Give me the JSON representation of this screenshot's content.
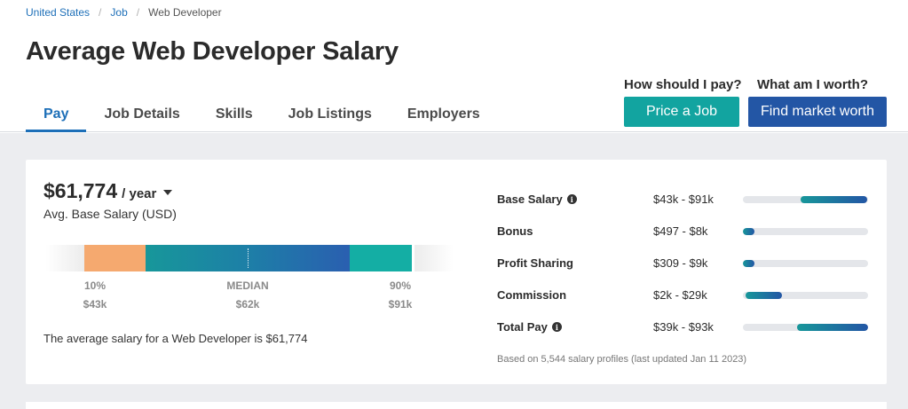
{
  "breadcrumb": {
    "items": [
      "United States",
      "Job",
      "Web Developer"
    ]
  },
  "page_title": "Average Web Developer Salary",
  "tabs": [
    {
      "label": "Pay",
      "active": true
    },
    {
      "label": "Job Details",
      "active": false
    },
    {
      "label": "Skills",
      "active": false
    },
    {
      "label": "Job Listings",
      "active": false
    },
    {
      "label": "Employers",
      "active": false
    }
  ],
  "cta": {
    "pay_question": "How should I pay?",
    "pay_button": "Price a Job",
    "worth_question": "What am I worth?",
    "worth_button": "Find market worth"
  },
  "summary": {
    "amount": "$61,774",
    "period": "/ year",
    "subtitle": "Avg. Base Salary (USD)",
    "percentiles": {
      "low_label": "10%",
      "low_value": "$43k",
      "median_label": "MEDIAN",
      "median_value": "$62k",
      "high_label": "90%",
      "high_value": "$91k"
    },
    "avg_text": "The average salary for a Web Developer is $61,774"
  },
  "pay_breakdown": [
    {
      "label": "Base Salary",
      "info": true,
      "range": "$43k - $91k",
      "fill_start": 0.46,
      "fill_end": 0.99
    },
    {
      "label": "Bonus",
      "info": false,
      "range": "$497 - $8k",
      "fill_start": 0.0,
      "fill_end": 0.09
    },
    {
      "label": "Profit Sharing",
      "info": false,
      "range": "$309 - $9k",
      "fill_start": 0.0,
      "fill_end": 0.09
    },
    {
      "label": "Commission",
      "info": false,
      "range": "$2k - $29k",
      "fill_start": 0.02,
      "fill_end": 0.31
    },
    {
      "label": "Total Pay",
      "info": true,
      "range": "$39k - $93k",
      "fill_start": 0.43,
      "fill_end": 1.0
    }
  ],
  "footnote": "Based on 5,544 salary profiles (last updated Jan 11 2023)",
  "colors": {
    "accent": "#1d6fb8",
    "teal": "#12a4a0",
    "navy": "#2356a5",
    "orange": "#f5a96f"
  }
}
